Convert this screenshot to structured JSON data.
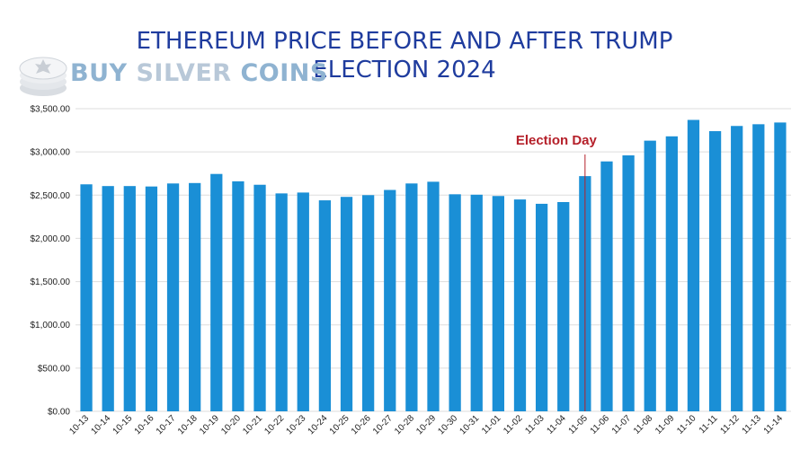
{
  "colors": {
    "title": "#1f3c9e",
    "bar": "#1a8fd6",
    "annotation": "#b5202a",
    "grid": "#dddddd"
  },
  "logo": {
    "word1": "BUY",
    "word2": "SILVER",
    "word3": "COINS",
    "icon": "silver-coin-stack-icon"
  },
  "chart_data": {
    "type": "bar",
    "title": "ETHEREUM PRICE BEFORE AND AFTER TRUMP ELECTION 2024",
    "xlabel": "",
    "ylabel": "",
    "ylim": [
      0,
      3500
    ],
    "grid": true,
    "y_ticks": [
      0,
      500,
      1000,
      1500,
      2000,
      2500,
      3000,
      3500
    ],
    "y_tick_labels": [
      "$0.00",
      "$500.00",
      "$1,000.00",
      "$1,500.00",
      "$2,000.00",
      "$2,500.00",
      "$3,000.00",
      "$3,500.00"
    ],
    "categories": [
      "10-13",
      "10-14",
      "10-15",
      "10-16",
      "10-17",
      "10-18",
      "10-19",
      "10-20",
      "10-21",
      "10-22",
      "10-23",
      "10-24",
      "10-25",
      "10-26",
      "10-27",
      "10-28",
      "10-29",
      "10-30",
      "10-31",
      "11-01",
      "11-02",
      "11-03",
      "11-04",
      "11-05",
      "11-06",
      "11-07",
      "11-08",
      "11-09",
      "11-10",
      "11-11",
      "11-12",
      "11-13",
      "11-14"
    ],
    "values": [
      2625,
      2605,
      2605,
      2600,
      2635,
      2640,
      2745,
      2660,
      2620,
      2520,
      2530,
      2440,
      2480,
      2500,
      2560,
      2635,
      2655,
      2510,
      2505,
      2490,
      2450,
      2400,
      2420,
      2720,
      2890,
      2960,
      3130,
      3180,
      3370,
      3240,
      3300,
      3320,
      3340
    ],
    "annotations": [
      {
        "text": "Election Day",
        "at": "11-05"
      }
    ]
  }
}
